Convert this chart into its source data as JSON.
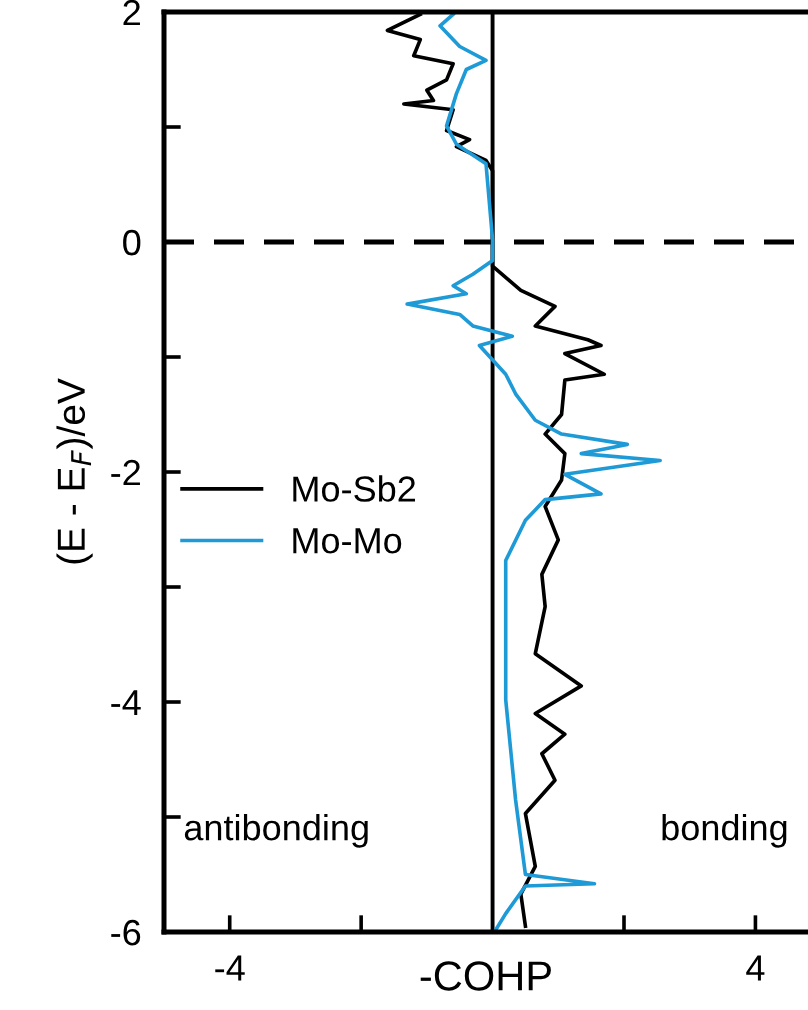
{
  "chart_data": {
    "type": "line",
    "xlabel": "-COHP",
    "ylabel": "(E - E$_{F}$)/eV",
    "xlim": [
      -5,
      4.8
    ],
    "xticks": [
      -4,
      {
        "value": -2,
        "label": null
      },
      {
        "value": 2,
        "label": null
      },
      4
    ],
    "ylim": [
      -6,
      2
    ],
    "yticks": [
      -6,
      {
        "value": -5,
        "label": null
      },
      -4,
      {
        "value": -3,
        "label": null
      },
      -2,
      {
        "value": -1,
        "label": null
      },
      0,
      {
        "value": 1,
        "label": null
      },
      2
    ],
    "grid": false,
    "legend": "left",
    "line_style": "solid",
    "marker": "none",
    "ref_lines": [
      {
        "axis": "x",
        "value": 0,
        "color": "#000000",
        "line_style": "solid"
      },
      {
        "axis": "y",
        "value": 0,
        "color": "#000000",
        "line_style": "dashed"
      }
    ],
    "annotations": [
      "antibonding",
      "bonding"
    ],
    "series": [
      {
        "name": "Mo-Sb2",
        "color": "#000000",
        "x": [
          -1.1,
          -1.6,
          -1.1,
          -1.2,
          -0.6,
          -0.7,
          -1.0,
          -0.9,
          -1.35,
          -0.6,
          -0.7,
          -0.35,
          -0.55,
          -0.1,
          0,
          0,
          0,
          0.43,
          0.95,
          0.65,
          1.45,
          1.65,
          1.1,
          1.7,
          1.1,
          1.05,
          0.8,
          1.1,
          1.05,
          0.8,
          1.0,
          0.75,
          0.8,
          0.65,
          1.35,
          0.65,
          1.1,
          0.75,
          0.95,
          0.5,
          0.65,
          0.43,
          0.5
        ],
        "values": [
          1.98,
          1.84,
          1.76,
          1.62,
          1.55,
          1.41,
          1.32,
          1.23,
          1.2,
          1.15,
          0.97,
          0.89,
          0.83,
          0.71,
          0.62,
          0.02,
          -0.21,
          -0.42,
          -0.56,
          -0.73,
          -0.85,
          -0.9,
          -0.97,
          -1.15,
          -1.2,
          -1.5,
          -1.67,
          -1.84,
          -2.07,
          -2.3,
          -2.59,
          -2.89,
          -3.17,
          -3.58,
          -3.86,
          -4.1,
          -4.28,
          -4.45,
          -4.68,
          -4.97,
          -5.43,
          -5.67,
          -5.95
        ]
      },
      {
        "name": "Mo-Mo",
        "color": "#1e9ad6",
        "x": [
          -0.6,
          -0.8,
          -0.5,
          -0.1,
          -0.4,
          -0.55,
          -0.7,
          -0.55,
          -0.1,
          0,
          0,
          -0.3,
          -0.6,
          -0.4,
          -1.3,
          -0.5,
          -0.3,
          0.3,
          -0.2,
          0.2,
          0.35,
          0.65,
          1.05,
          2.05,
          1.35,
          2.55,
          1.1,
          1.65,
          0.8,
          0.5,
          0.2,
          0.2,
          0.2,
          0.35,
          0.5,
          1.55,
          0.5,
          0.2,
          0.05
        ],
        "values": [
          1.98,
          1.88,
          1.7,
          1.58,
          1.5,
          1.29,
          1.01,
          0.85,
          0.68,
          0.02,
          -0.16,
          -0.28,
          -0.38,
          -0.45,
          -0.54,
          -0.63,
          -0.73,
          -0.82,
          -0.9,
          -1.15,
          -1.32,
          -1.55,
          -1.67,
          -1.76,
          -1.84,
          -1.9,
          -2.02,
          -2.19,
          -2.24,
          -2.42,
          -2.77,
          -3.23,
          -3.98,
          -4.85,
          -5.5,
          -5.58,
          -5.6,
          -5.84,
          -5.98
        ]
      }
    ]
  }
}
